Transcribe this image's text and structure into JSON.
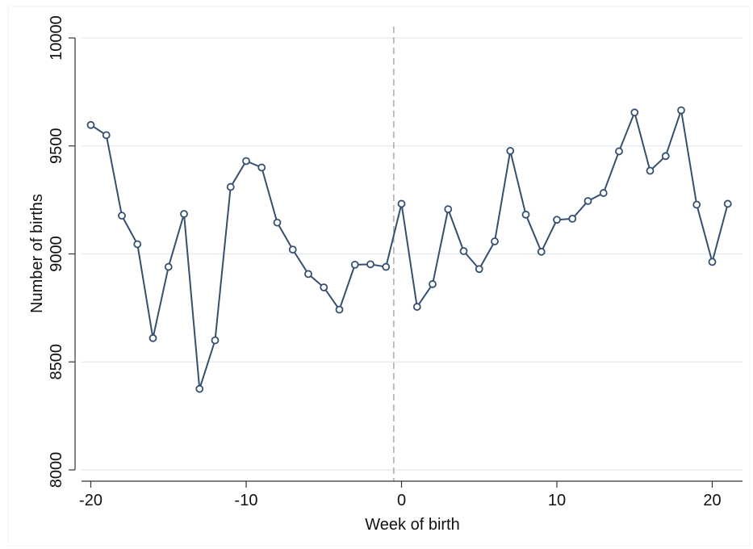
{
  "chart_data": {
    "type": "line",
    "title": "",
    "xlabel": "Week of birth",
    "ylabel": "Number of births",
    "xlim": [
      -21,
      22
    ],
    "ylim": [
      8000,
      10000
    ],
    "x_ticks": [
      -20,
      -10,
      0,
      10,
      20
    ],
    "x_tick_labels": [
      "-20",
      "-10",
      "0",
      "10",
      "20"
    ],
    "y_ticks": [
      8000,
      8500,
      9000,
      9500,
      10000
    ],
    "y_tick_labels": [
      "8000",
      "8500",
      "9000",
      "9500",
      "10000"
    ],
    "grid": true,
    "markers": "hollow-circle",
    "reference_line": {
      "x": -0.5,
      "style": "dashed"
    },
    "colors": {
      "line": "#35506f",
      "grid": "#e2eaef",
      "axis": "#333333",
      "reference": "#b0b0b0"
    },
    "series": [
      {
        "x": [
          -20,
          -19,
          -18,
          -17,
          -16,
          -15,
          -14,
          -13,
          -12,
          -11,
          -10,
          -9,
          -8,
          -7,
          -6,
          -5,
          -4,
          -3,
          -2,
          -1,
          0,
          1,
          2,
          3,
          4,
          5,
          6,
          7,
          8,
          9,
          10,
          11,
          12,
          13,
          14,
          15,
          16,
          17,
          18,
          19,
          20,
          21
        ],
        "values": [
          9597,
          9550,
          9177,
          9045,
          8610,
          8940,
          9185,
          8375,
          8600,
          9310,
          9430,
          9400,
          9145,
          9020,
          8907,
          8845,
          8742,
          8950,
          8952,
          8940,
          9232,
          8755,
          8860,
          9207,
          9013,
          8930,
          9058,
          9477,
          9182,
          9010,
          9158,
          9163,
          9245,
          9282,
          9475,
          9655,
          9385,
          9453,
          9665,
          9228,
          8963,
          9232
        ]
      }
    ]
  }
}
